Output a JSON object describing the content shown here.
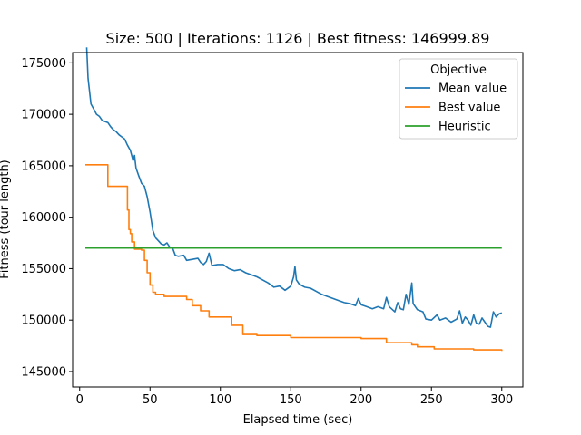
{
  "chart_data": {
    "type": "line",
    "title": "Size: 500 | Iterations: 1126 | Best fitness: 146999.89",
    "xlabel": "Elapsed time (sec)",
    "ylabel": "Fitness (tour length)",
    "xlim": [
      -5,
      315
    ],
    "ylim": [
      143500,
      176000
    ],
    "xticks": [
      0,
      50,
      100,
      150,
      200,
      250,
      300
    ],
    "yticks": [
      145000,
      150000,
      155000,
      160000,
      165000,
      170000,
      175000
    ],
    "grid": false,
    "legend": {
      "title": "Objective",
      "placement": "top-right"
    },
    "colors": {
      "mean": "#1f77b4",
      "best": "#ff7f0e",
      "heuristic": "#2ca02c"
    },
    "series": [
      {
        "name": "Mean value",
        "key": "mean",
        "step": false,
        "points": [
          [
            5,
            176500
          ],
          [
            6,
            173500
          ],
          [
            8,
            171000
          ],
          [
            10,
            170500
          ],
          [
            12,
            170000
          ],
          [
            14,
            169800
          ],
          [
            16,
            169400
          ],
          [
            18,
            169300
          ],
          [
            20,
            169200
          ],
          [
            22,
            168800
          ],
          [
            24,
            168500
          ],
          [
            26,
            168300
          ],
          [
            28,
            168000
          ],
          [
            30,
            167800
          ],
          [
            32,
            167600
          ],
          [
            34,
            167000
          ],
          [
            36,
            166500
          ],
          [
            38,
            165500
          ],
          [
            39,
            166000
          ],
          [
            40,
            164800
          ],
          [
            42,
            164000
          ],
          [
            44,
            163300
          ],
          [
            46,
            163000
          ],
          [
            48,
            162000
          ],
          [
            50,
            160500
          ],
          [
            52,
            158700
          ],
          [
            54,
            158000
          ],
          [
            56,
            157700
          ],
          [
            58,
            157400
          ],
          [
            60,
            157300
          ],
          [
            62,
            157500
          ],
          [
            64,
            157100
          ],
          [
            66,
            157000
          ],
          [
            68,
            156300
          ],
          [
            70,
            156200
          ],
          [
            74,
            156300
          ],
          [
            76,
            155800
          ],
          [
            80,
            155900
          ],
          [
            84,
            156000
          ],
          [
            86,
            155600
          ],
          [
            88,
            155400
          ],
          [
            90,
            155700
          ],
          [
            92,
            156500
          ],
          [
            94,
            155300
          ],
          [
            98,
            155400
          ],
          [
            102,
            155400
          ],
          [
            106,
            155000
          ],
          [
            110,
            154800
          ],
          [
            114,
            154900
          ],
          [
            118,
            154600
          ],
          [
            122,
            154400
          ],
          [
            126,
            154200
          ],
          [
            130,
            153900
          ],
          [
            134,
            153600
          ],
          [
            138,
            153200
          ],
          [
            142,
            153300
          ],
          [
            146,
            152900
          ],
          [
            150,
            153300
          ],
          [
            152,
            154200
          ],
          [
            153,
            155200
          ],
          [
            154,
            153900
          ],
          [
            156,
            153500
          ],
          [
            160,
            153200
          ],
          [
            164,
            153100
          ],
          [
            168,
            152800
          ],
          [
            172,
            152500
          ],
          [
            176,
            152300
          ],
          [
            180,
            152100
          ],
          [
            184,
            151900
          ],
          [
            188,
            151700
          ],
          [
            192,
            151600
          ],
          [
            196,
            151400
          ],
          [
            198,
            152100
          ],
          [
            200,
            151500
          ],
          [
            204,
            151300
          ],
          [
            208,
            151100
          ],
          [
            212,
            151300
          ],
          [
            216,
            151100
          ],
          [
            218,
            152200
          ],
          [
            220,
            151300
          ],
          [
            224,
            150800
          ],
          [
            226,
            151700
          ],
          [
            228,
            151100
          ],
          [
            230,
            151000
          ],
          [
            232,
            152500
          ],
          [
            234,
            151500
          ],
          [
            236,
            153600
          ],
          [
            237,
            151600
          ],
          [
            240,
            151000
          ],
          [
            244,
            150800
          ],
          [
            246,
            150100
          ],
          [
            250,
            150000
          ],
          [
            254,
            150500
          ],
          [
            256,
            150000
          ],
          [
            260,
            150200
          ],
          [
            264,
            149800
          ],
          [
            268,
            150100
          ],
          [
            270,
            150900
          ],
          [
            272,
            149700
          ],
          [
            274,
            150300
          ],
          [
            276,
            150000
          ],
          [
            278,
            149500
          ],
          [
            280,
            150500
          ],
          [
            282,
            149700
          ],
          [
            284,
            149600
          ],
          [
            286,
            150200
          ],
          [
            288,
            149800
          ],
          [
            290,
            149400
          ],
          [
            292,
            149300
          ],
          [
            294,
            150800
          ],
          [
            296,
            150300
          ],
          [
            298,
            150600
          ],
          [
            300,
            150700
          ]
        ]
      },
      {
        "name": "Best value",
        "key": "best",
        "step": true,
        "points": [
          [
            4,
            165100
          ],
          [
            20,
            163000
          ],
          [
            34,
            160700
          ],
          [
            35,
            158800
          ],
          [
            36,
            158400
          ],
          [
            37,
            157600
          ],
          [
            39,
            156900
          ],
          [
            44,
            156800
          ],
          [
            46,
            155800
          ],
          [
            48,
            154600
          ],
          [
            50,
            153400
          ],
          [
            52,
            152700
          ],
          [
            54,
            152500
          ],
          [
            60,
            152300
          ],
          [
            76,
            152000
          ],
          [
            80,
            151400
          ],
          [
            86,
            150900
          ],
          [
            92,
            150300
          ],
          [
            108,
            149500
          ],
          [
            116,
            148600
          ],
          [
            126,
            148500
          ],
          [
            150,
            148300
          ],
          [
            176,
            148300
          ],
          [
            200,
            148200
          ],
          [
            218,
            147800
          ],
          [
            236,
            147600
          ],
          [
            240,
            147400
          ],
          [
            252,
            147200
          ],
          [
            280,
            147100
          ],
          [
            300,
            147000
          ]
        ]
      },
      {
        "name": "Heuristic",
        "key": "heuristic",
        "step": false,
        "points": [
          [
            4,
            157000
          ],
          [
            300,
            157000
          ]
        ]
      }
    ]
  }
}
